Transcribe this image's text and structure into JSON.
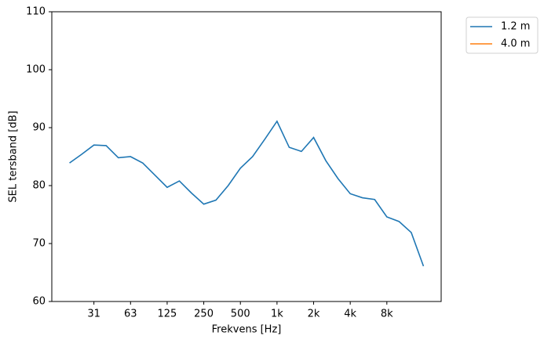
{
  "chart_data": {
    "type": "line",
    "xlabel": "Frekvens [Hz]",
    "ylabel": "SEL tersband [dB]",
    "categories": [
      null,
      null,
      "31",
      null,
      null,
      "63",
      null,
      null,
      "125",
      null,
      null,
      "250",
      null,
      null,
      "500",
      null,
      null,
      "1k",
      null,
      null,
      "2k",
      null,
      null,
      "4k",
      null,
      null,
      "8k",
      null,
      null,
      null
    ],
    "series": [
      {
        "name": "1.2 m",
        "color": "#1f77b4",
        "values": [
          83.9,
          85.4,
          87.0,
          86.9,
          84.8,
          85.0,
          83.9,
          81.8,
          79.7,
          80.8,
          78.7,
          76.8,
          77.5,
          80.0,
          83.0,
          85.0,
          88.0,
          91.1,
          86.6,
          85.9,
          88.3,
          84.3,
          81.2,
          78.6,
          77.9,
          77.6,
          74.6,
          73.8,
          71.9,
          66.1
        ]
      },
      {
        "name": "4.0 m",
        "color": "#ff7f0e",
        "values": [
          null,
          null,
          null,
          null,
          null,
          null,
          null,
          null,
          null,
          null,
          null,
          null,
          null,
          null,
          null,
          null,
          null,
          null,
          null,
          null,
          null,
          null,
          null,
          null,
          null,
          null,
          null,
          null,
          null,
          null
        ]
      }
    ],
    "ylim": [
      60,
      110
    ],
    "yticks": [
      60,
      70,
      80,
      90,
      100,
      110
    ],
    "legend": "outside-upper-right"
  }
}
